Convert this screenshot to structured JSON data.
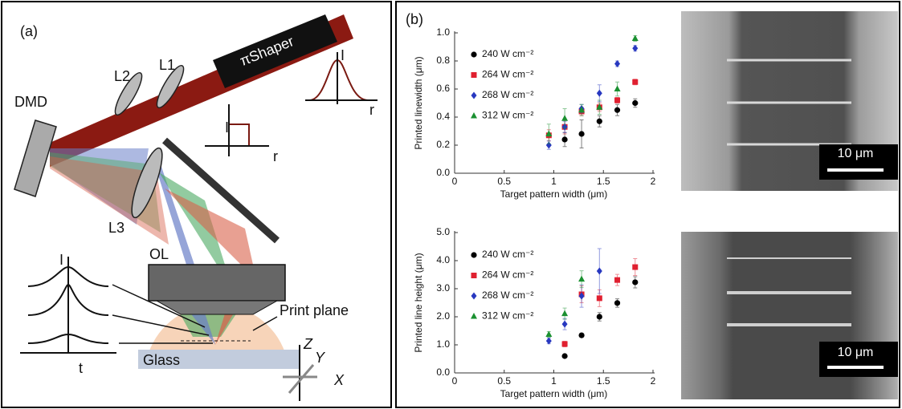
{
  "panel_a": {
    "label": "(a)",
    "dmd": "DMD",
    "l1": "L1",
    "l2": "L2",
    "l3": "L3",
    "ol": "OL",
    "shaper": "πShaper",
    "inset1_y": "I",
    "inset1_x": "r",
    "inset2_y": "I",
    "inset2_x": "r",
    "print_plane": "Print plane",
    "glass": "Glass",
    "axis_z": "Z",
    "axis_y": "Y",
    "axis_x": "X",
    "pulse_y": "I",
    "pulse_x": "t"
  },
  "panel_b": {
    "label": "(b)",
    "scale_bar_top": "10 μm",
    "scale_bar_bottom": "10 μm"
  },
  "chart_data": [
    {
      "type": "scatter",
      "xlabel": "Target pattern width (μm)",
      "ylabel": "Printed linewidth (μm)",
      "xlim": [
        0,
        2
      ],
      "xticks": [
        0,
        0.5,
        1,
        1.5,
        2
      ],
      "ylim": [
        0,
        1
      ],
      "yticks": [
        {
          "value": 0,
          "label": "0.0"
        },
        {
          "value": 0.2,
          "label": "0.2"
        },
        {
          "value": 0.4,
          "label": "0.4"
        },
        {
          "value": 0.6,
          "label": "0.6"
        },
        {
          "value": 0.8,
          "label": "0.8"
        },
        {
          "value": 1,
          "label": "1.0"
        }
      ],
      "x": [
        0.95,
        1.11,
        1.28,
        1.46,
        1.64,
        1.82
      ],
      "series": [
        {
          "name": "240 W cm⁻²",
          "color": "#000000",
          "marker": "circle",
          "values": [
            null,
            0.24,
            0.28,
            0.37,
            0.45,
            0.5
          ],
          "errors": [
            null,
            0.05,
            0.1,
            0.04,
            0.04,
            0.03
          ]
        },
        {
          "name": "264 W cm⁻²",
          "color": "#e02030",
          "marker": "square",
          "values": [
            0.27,
            0.33,
            0.44,
            0.47,
            0.52,
            0.65
          ],
          "errors": [
            0.04,
            0.05,
            0.03,
            0.03,
            0.02,
            0.02
          ]
        },
        {
          "name": "268 W cm⁻²",
          "color": "#2838c0",
          "marker": "diamond",
          "values": [
            0.2,
            0.33,
            0.46,
            0.57,
            0.78,
            0.89
          ],
          "errors": [
            0.03,
            0.04,
            0.03,
            0.06,
            0.02,
            0.02
          ]
        },
        {
          "name": "312 W cm⁻²",
          "color": "#1a9030",
          "marker": "triangle",
          "values": [
            0.28,
            0.39,
            0.45,
            0.47,
            0.6,
            0.96
          ],
          "errors": [
            0.07,
            0.07,
            0.04,
            0.05,
            0.05,
            0.02
          ]
        }
      ]
    },
    {
      "type": "scatter",
      "xlabel": "Target pattern width (μm)",
      "ylabel": "Printed line height (μm)",
      "xlim": [
        0,
        2
      ],
      "xticks": [
        0,
        0.5,
        1,
        1.5,
        2
      ],
      "ylim": [
        0,
        5
      ],
      "yticks": [
        {
          "value": 0,
          "label": "0.0"
        },
        {
          "value": 1,
          "label": "1.0"
        },
        {
          "value": 2,
          "label": "2.0"
        },
        {
          "value": 3,
          "label": "3.0"
        },
        {
          "value": 4,
          "label": "4.0"
        },
        {
          "value": 5,
          "label": "5.0"
        }
      ],
      "x": [
        0.95,
        1.11,
        1.28,
        1.46,
        1.64,
        1.82
      ],
      "series": [
        {
          "name": "240 W cm⁻²",
          "color": "#000000",
          "marker": "circle",
          "values": [
            null,
            0.6,
            1.34,
            2.0,
            2.49,
            3.23
          ],
          "errors": [
            null,
            0.05,
            0.05,
            0.15,
            0.15,
            0.2
          ]
        },
        {
          "name": "264 W cm⁻²",
          "color": "#e02030",
          "marker": "square",
          "values": [
            null,
            1.03,
            2.8,
            2.66,
            3.31,
            3.77
          ],
          "errors": [
            null,
            0.1,
            0.3,
            0.3,
            0.2,
            0.3
          ]
        },
        {
          "name": "268 W cm⁻²",
          "color": "#2838c0",
          "marker": "diamond",
          "values": [
            1.14,
            1.74,
            2.74,
            3.63,
            null,
            null
          ],
          "errors": [
            0.1,
            0.2,
            0.4,
            0.8,
            null,
            null
          ]
        },
        {
          "name": "312 W cm⁻²",
          "color": "#1a9030",
          "marker": "triangle",
          "values": [
            1.37,
            2.11,
            3.34,
            null,
            null,
            null
          ],
          "errors": [
            0.1,
            0.2,
            0.3,
            null,
            null,
            null
          ]
        }
      ]
    }
  ]
}
